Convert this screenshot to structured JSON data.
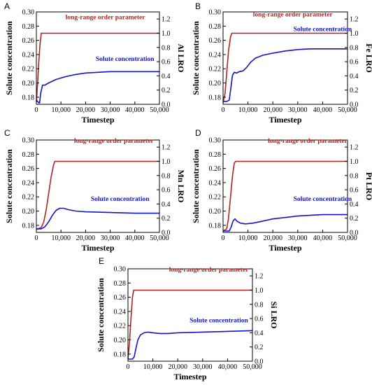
{
  "chart_data": [
    {
      "panel": "A",
      "type": "line",
      "xlabel": "Timestep",
      "ylabel_left": "Solute concentration",
      "ylabel_right": "Al LRO",
      "xlim": [
        0,
        50000
      ],
      "ylim_left": [
        0.17,
        0.3
      ],
      "ylim_right": [
        0,
        1.3
      ],
      "xticks": [
        0,
        10000,
        20000,
        30000,
        40000,
        50000
      ],
      "xtick_labels": [
        "0",
        "10,000",
        "20,000",
        "30,000",
        "40,000",
        "50,000"
      ],
      "yticks_left": [
        0.18,
        0.2,
        0.22,
        0.24,
        0.26,
        0.28,
        0.3
      ],
      "ytick_labels_left": [
        "0.18",
        "0.20",
        "0.22",
        "0.24",
        "0.26",
        "0.28",
        "0.30"
      ],
      "yticks_right": [
        0.0,
        0.2,
        0.4,
        0.6,
        0.8,
        1.0,
        1.2
      ],
      "ytick_labels_right": [
        "0.0",
        "0.2",
        "0.4",
        "0.6",
        "0.8",
        "1.0",
        "1.2"
      ],
      "series": [
        {
          "name": "long-range order parameter",
          "axis": "right",
          "color": "#b22222",
          "x": [
            0,
            500,
            1000,
            1500,
            2000,
            2500,
            5000,
            20000,
            50000
          ],
          "y": [
            0.03,
            0.3,
            0.6,
            0.85,
            1.0,
            1.0,
            1.0,
            1.0,
            1.0
          ]
        },
        {
          "name": "Solute concentration",
          "axis": "left",
          "color": "#1414c8",
          "x": [
            0,
            500,
            1000,
            1300,
            1800,
            2500,
            3500,
            5000,
            8000,
            12000,
            16000,
            20000,
            25000,
            30000,
            40000,
            50000
          ],
          "y": [
            0.176,
            0.174,
            0.172,
            0.172,
            0.186,
            0.197,
            0.197,
            0.2,
            0.205,
            0.209,
            0.212,
            0.214,
            0.215,
            0.216,
            0.216,
            0.216
          ]
        }
      ]
    },
    {
      "panel": "B",
      "type": "line",
      "xlabel": "Timestep",
      "ylabel_left": "Solute concentration",
      "ylabel_right": "Fe LRO",
      "xlim": [
        0,
        50000
      ],
      "ylim_left": [
        0.17,
        0.3
      ],
      "ylim_right": [
        0,
        1.3
      ],
      "xticks": [
        0,
        10000,
        20000,
        30000,
        40000,
        50000
      ],
      "xtick_labels": [
        "0",
        "10,000",
        "20,000",
        "30,000",
        "40,000",
        "50,000"
      ],
      "yticks_left": [
        0.18,
        0.2,
        0.22,
        0.24,
        0.26,
        0.28,
        0.3
      ],
      "ytick_labels_left": [
        "0.18",
        "0.20",
        "0.22",
        "0.24",
        "0.26",
        "0.28",
        "0.30"
      ],
      "yticks_right": [
        0.0,
        0.2,
        0.4,
        0.6,
        0.8,
        1.0,
        1.2
      ],
      "ytick_labels_right": [
        "0.0",
        "0.2",
        "0.4",
        "0.6",
        "0.8",
        "1.0",
        "1.2"
      ],
      "series": [
        {
          "name": "long-range order parameter",
          "axis": "right",
          "color": "#b22222",
          "x": [
            0,
            800,
            1500,
            2200,
            3000,
            3500,
            5000,
            20000,
            50000
          ],
          "y": [
            0.02,
            0.15,
            0.45,
            0.75,
            0.95,
            1.0,
            1.0,
            1.0,
            1.0
          ]
        },
        {
          "name": "Solute concentration",
          "axis": "left",
          "color": "#1414c8",
          "x": [
            0,
            1500,
            2500,
            3200,
            3800,
            4500,
            5500,
            6500,
            8000,
            9500,
            11000,
            13000,
            16000,
            20000,
            25000,
            30000,
            35000,
            40000,
            50000
          ],
          "y": [
            0.174,
            0.174,
            0.176,
            0.195,
            0.211,
            0.215,
            0.214,
            0.216,
            0.217,
            0.222,
            0.229,
            0.235,
            0.239,
            0.242,
            0.245,
            0.247,
            0.248,
            0.248,
            0.248
          ]
        }
      ]
    },
    {
      "panel": "C",
      "type": "line",
      "xlabel": "Timestep",
      "ylabel_left": "Solute concentration",
      "ylabel_right": "Mn LRO",
      "xlim": [
        0,
        50000
      ],
      "ylim_left": [
        0.17,
        0.3
      ],
      "ylim_right": [
        0,
        1.3
      ],
      "xticks": [
        0,
        10000,
        20000,
        30000,
        40000,
        50000
      ],
      "xtick_labels": [
        "0",
        "10,000",
        "20,000",
        "30,000",
        "40,000",
        "50,000"
      ],
      "yticks_left": [
        0.18,
        0.2,
        0.22,
        0.24,
        0.26,
        0.28,
        0.3
      ],
      "ytick_labels_left": [
        "0.18",
        "0.20",
        "0.22",
        "0.24",
        "0.26",
        "0.28",
        "0.30"
      ],
      "yticks_right": [
        0.0,
        0.2,
        0.4,
        0.6,
        0.8,
        1.0,
        1.2
      ],
      "ytick_labels_right": [
        "0.0",
        "0.2",
        "0.4",
        "0.6",
        "0.8",
        "1.0",
        "1.2"
      ],
      "series": [
        {
          "name": "long-range order parameter",
          "axis": "right",
          "color": "#b22222",
          "x": [
            0,
            2000,
            3000,
            4000,
            5000,
            6000,
            7000,
            7500,
            10000,
            30000,
            50000
          ],
          "y": [
            0.04,
            0.07,
            0.15,
            0.32,
            0.55,
            0.78,
            0.95,
            1.0,
            1.0,
            1.0,
            1.0
          ]
        },
        {
          "name": "Solute concentration",
          "axis": "left",
          "color": "#1414c8",
          "x": [
            0,
            2000,
            3500,
            5000,
            6500,
            8000,
            9500,
            11000,
            13000,
            16000,
            20000,
            30000,
            40000,
            50000
          ],
          "y": [
            0.175,
            0.175,
            0.178,
            0.185,
            0.194,
            0.201,
            0.204,
            0.204,
            0.202,
            0.2,
            0.199,
            0.198,
            0.197,
            0.197
          ]
        }
      ]
    },
    {
      "panel": "D",
      "type": "line",
      "xlabel": "Timestep",
      "ylabel_left": "Solute concentration",
      "ylabel_right": "Pt LRO",
      "xlim": [
        0,
        50000
      ],
      "ylim_left": [
        0.17,
        0.3
      ],
      "ylim_right": [
        0,
        1.3
      ],
      "xticks": [
        0,
        10000,
        20000,
        30000,
        40000,
        50000
      ],
      "xtick_labels": [
        "0",
        "10,000",
        "20,000",
        "30,000",
        "40,000",
        "50,000"
      ],
      "yticks_left": [
        0.18,
        0.2,
        0.22,
        0.24,
        0.26,
        0.28,
        0.3
      ],
      "ytick_labels_left": [
        "0.18",
        "0.20",
        "0.22",
        "0.24",
        "0.26",
        "0.28",
        "0.30"
      ],
      "yticks_right": [
        0.0,
        0.2,
        0.4,
        0.6,
        0.8,
        1.0,
        1.2
      ],
      "ytick_labels_right": [
        "0.0",
        "0.2",
        "0.4",
        "0.6",
        "0.8",
        "1.0",
        "1.2"
      ],
      "series": [
        {
          "name": "long-range order parameter",
          "axis": "right",
          "color": "#b22222",
          "x": [
            0,
            1500,
            2200,
            3000,
            3800,
            4500,
            5000,
            10000,
            30000,
            50000
          ],
          "y": [
            0.02,
            0.05,
            0.2,
            0.5,
            0.8,
            0.97,
            1.0,
            1.0,
            1.0,
            1.0
          ]
        },
        {
          "name": "Solute concentration",
          "axis": "left",
          "color": "#1414c8",
          "x": [
            0,
            2500,
            3300,
            4000,
            4800,
            5500,
            7000,
            9000,
            12000,
            16000,
            20000,
            25000,
            30000,
            35000,
            40000,
            50000
          ],
          "y": [
            0.172,
            0.172,
            0.178,
            0.186,
            0.189,
            0.186,
            0.183,
            0.182,
            0.183,
            0.186,
            0.189,
            0.191,
            0.193,
            0.194,
            0.195,
            0.195
          ]
        }
      ]
    },
    {
      "panel": "E",
      "type": "line",
      "xlabel": "Timestep",
      "ylabel_left": "Solute concentration",
      "ylabel_right": "Si LRO",
      "xlim": [
        0,
        50000
      ],
      "ylim_left": [
        0.17,
        0.3
      ],
      "ylim_right": [
        0,
        1.3
      ],
      "xticks": [
        0,
        10000,
        20000,
        30000,
        40000,
        50000
      ],
      "xtick_labels": [
        "0",
        "10,000",
        "20,000",
        "30,000",
        "40,000",
        "50,000"
      ],
      "yticks_left": [
        0.18,
        0.2,
        0.22,
        0.24,
        0.26,
        0.28,
        0.3
      ],
      "ytick_labels_left": [
        "0.18",
        "0.20",
        "0.22",
        "0.24",
        "0.26",
        "0.28",
        "0.30"
      ],
      "yticks_right": [
        0.0,
        0.2,
        0.4,
        0.6,
        0.8,
        1.0,
        1.2
      ],
      "ytick_labels_right": [
        "0.0",
        "0.2",
        "0.4",
        "0.6",
        "0.8",
        "1.0",
        "1.2"
      ],
      "series": [
        {
          "name": "long-range order parameter",
          "axis": "right",
          "color": "#b22222",
          "x": [
            0,
            600,
            1200,
            1800,
            2300,
            3000,
            10000,
            30000,
            50000
          ],
          "y": [
            0.03,
            0.25,
            0.6,
            0.9,
            1.0,
            1.0,
            1.0,
            1.0,
            1.0
          ]
        },
        {
          "name": "Solute concentration",
          "axis": "left",
          "color": "#1414c8",
          "x": [
            0,
            1800,
            2500,
            3200,
            4000,
            5000,
            6500,
            8000,
            10000,
            13000,
            16000,
            20000,
            30000,
            40000,
            50000
          ],
          "y": [
            0.173,
            0.173,
            0.176,
            0.188,
            0.2,
            0.207,
            0.21,
            0.211,
            0.21,
            0.209,
            0.209,
            0.21,
            0.211,
            0.212,
            0.213
          ]
        }
      ]
    }
  ]
}
